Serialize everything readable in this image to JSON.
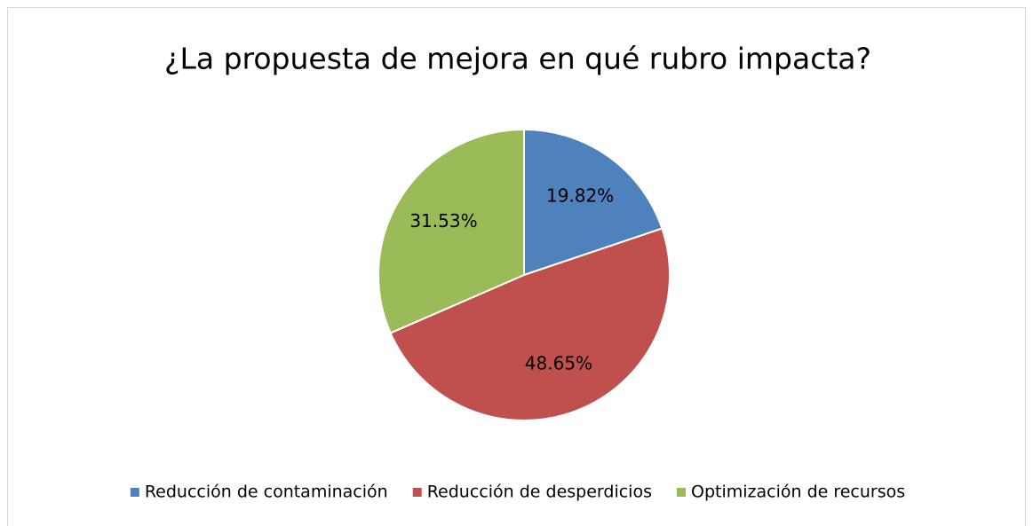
{
  "chart_data": {
    "type": "pie",
    "title": "¿La propuesta de mejora en qué rubro impacta?",
    "categories": [
      "Reducción de contaminación",
      "Reducción de desperdicios",
      "Optimización de recursos"
    ],
    "values": [
      19.82,
      48.65,
      31.53
    ],
    "value_labels": [
      "19.82%",
      "48.65%",
      "31.53%"
    ],
    "colors": [
      "#4f81bd",
      "#c0504d",
      "#9bbb59"
    ],
    "legend": "bottom"
  }
}
